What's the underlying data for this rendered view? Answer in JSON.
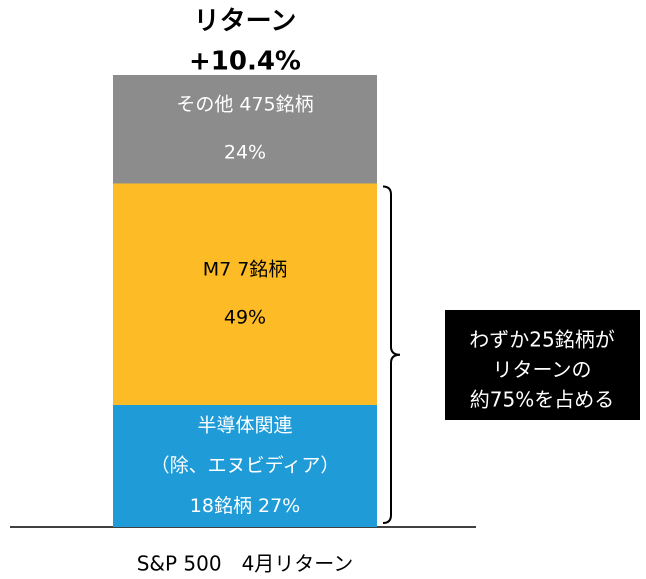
{
  "chart_data": {
    "type": "stacked_bar",
    "title": [
      "リターン",
      "+10.4%"
    ],
    "categories": [
      "S&P 500　4月リターン"
    ],
    "series": [
      {
        "name": [
          "半導体関連",
          "（除、エヌビディア）",
          "18銘柄"
        ],
        "color": "#1f9bd7",
        "values": [
          27
        ],
        "value_labels": [
          "27%"
        ]
      },
      {
        "name": [
          "M7 7銘柄"
        ],
        "color": "#fdbc25",
        "values": [
          49
        ],
        "value_labels": [
          "49%"
        ]
      },
      {
        "name": [
          "その他 475銘柄"
        ],
        "color": "#8c8c8c",
        "values": [
          24
        ],
        "value_labels": [
          "24%"
        ]
      }
    ],
    "ylim": [
      0,
      100
    ],
    "annotation": [
      "わずか25銘柄が",
      "リターンの",
      "約75%を占める"
    ]
  }
}
